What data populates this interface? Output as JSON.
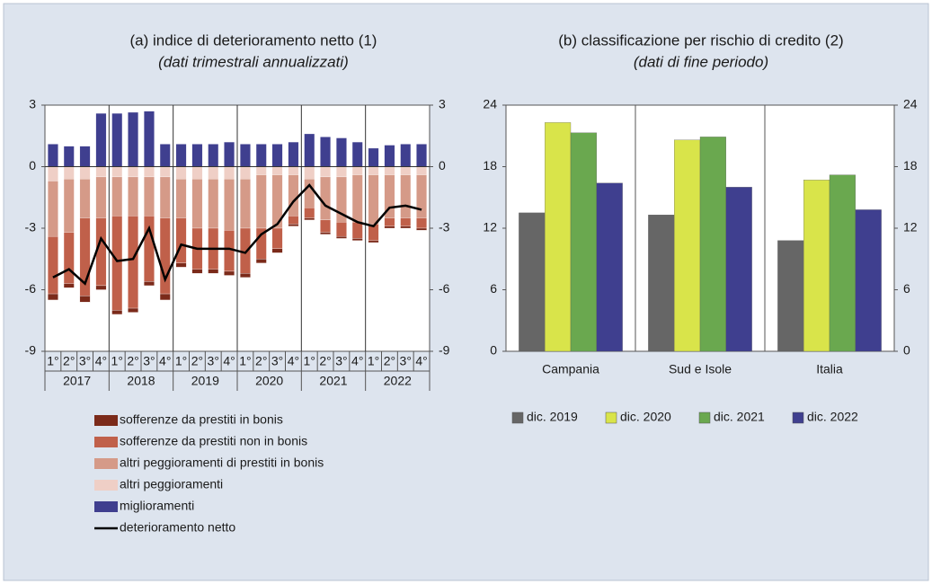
{
  "chart_data": [
    {
      "type": "stacked_bar",
      "title": "(a) indice di deterioramento netto (1)",
      "subtitle": "(dati trimestrali annualizzati)",
      "categories": [
        "1°",
        "2°",
        "3°",
        "4°",
        "1°",
        "2°",
        "3°",
        "4°",
        "1°",
        "2°",
        "3°",
        "4°",
        "1°",
        "2°",
        "3°",
        "4°",
        "1°",
        "2°",
        "3°",
        "4°",
        "1°",
        "2°",
        "3°",
        "4°"
      ],
      "groups": [
        "2017",
        "2018",
        "2019",
        "2020",
        "2021",
        "2022"
      ],
      "ylim": [
        -9,
        3
      ],
      "yticks": [
        -9,
        -6,
        -3,
        0,
        3
      ],
      "y2lim": [
        -9,
        3
      ],
      "y2ticks": [
        -9,
        -6,
        -3,
        0,
        3
      ],
      "series": [
        {
          "name": "sofferenze da prestiti in bonis",
          "color": "#7b2a1a",
          "values": [
            -0.3,
            -0.2,
            -0.3,
            -0.2,
            -0.2,
            -0.2,
            -0.2,
            -0.3,
            -0.2,
            -0.2,
            -0.2,
            -0.2,
            -0.2,
            -0.2,
            -0.2,
            -0.1,
            -0.1,
            -0.1,
            -0.1,
            -0.1,
            -0.1,
            -0.1,
            -0.1,
            -0.1
          ]
        },
        {
          "name": "sofferenze da prestiti non in bonis",
          "color": "#c0604a",
          "values": [
            -2.8,
            -2.5,
            -3.8,
            -3.3,
            -4.6,
            -4.5,
            -3.2,
            -3.7,
            -2.2,
            -2.0,
            -2.0,
            -2.0,
            -2.2,
            -1.5,
            -1.0,
            -0.4,
            -0.5,
            -0.6,
            -0.7,
            -0.8,
            -0.8,
            -0.4,
            -0.4,
            -0.5
          ]
        },
        {
          "name": "altri peggioramenti di prestiti in bonis",
          "color": "#d59a88",
          "values": [
            -2.7,
            -2.6,
            -1.9,
            -2.0,
            -1.9,
            -1.9,
            -1.9,
            -2.0,
            -1.9,
            -2.4,
            -2.4,
            -2.5,
            -2.4,
            -2.6,
            -2.6,
            -2.0,
            -1.4,
            -2.1,
            -2.2,
            -2.3,
            -2.4,
            -2.1,
            -2.1,
            -2.1
          ]
        },
        {
          "name": "altri peggioramenti",
          "color": "#efcfc6",
          "values": [
            -0.7,
            -0.6,
            -0.6,
            -0.5,
            -0.5,
            -0.5,
            -0.5,
            -0.5,
            -0.6,
            -0.6,
            -0.6,
            -0.6,
            -0.6,
            -0.4,
            -0.4,
            -0.4,
            -0.6,
            -0.5,
            -0.5,
            -0.4,
            -0.4,
            -0.4,
            -0.4,
            -0.4
          ]
        },
        {
          "name": "miglioramenti",
          "color": "#3f3f8f",
          "values": [
            1.1,
            1.0,
            1.0,
            2.6,
            2.6,
            2.65,
            2.7,
            1.1,
            1.1,
            1.1,
            1.1,
            1.2,
            1.1,
            1.1,
            1.1,
            1.2,
            1.6,
            1.45,
            1.4,
            1.2,
            0.9,
            1.05,
            1.1,
            1.1
          ]
        },
        {
          "name": "deterioramento netto",
          "color": "#000000",
          "type": "line",
          "values": [
            -5.4,
            -5.0,
            -5.7,
            -3.5,
            -4.6,
            -4.5,
            -3.0,
            -5.5,
            -3.8,
            -4.0,
            -4.0,
            -4.0,
            -4.2,
            -3.3,
            -2.8,
            -1.7,
            -0.9,
            -1.9,
            -2.3,
            -2.7,
            -2.9,
            -2.0,
            -1.9,
            -2.1
          ]
        }
      ]
    },
    {
      "type": "bar",
      "title": "(b) classificazione per rischio di credito (2)",
      "subtitle": "(dati di fine periodo)",
      "categories": [
        "Campania",
        "Sud e Isole",
        "Italia"
      ],
      "ylim": [
        0,
        24
      ],
      "yticks": [
        0,
        6,
        12,
        18,
        24
      ],
      "y2lim": [
        0,
        24
      ],
      "y2ticks": [
        0,
        6,
        12,
        18,
        24
      ],
      "series": [
        {
          "name": "dic. 2019",
          "color": "#666666",
          "values": [
            13.5,
            13.3,
            10.8
          ]
        },
        {
          "name": "dic. 2020",
          "color": "#d9e44a",
          "values": [
            22.3,
            20.6,
            16.7
          ]
        },
        {
          "name": "dic. 2021",
          "color": "#6aa84f",
          "values": [
            21.3,
            20.9,
            17.2
          ]
        },
        {
          "name": "dic. 2022",
          "color": "#3f3f8f",
          "values": [
            16.4,
            16.0,
            13.8
          ]
        }
      ]
    }
  ]
}
